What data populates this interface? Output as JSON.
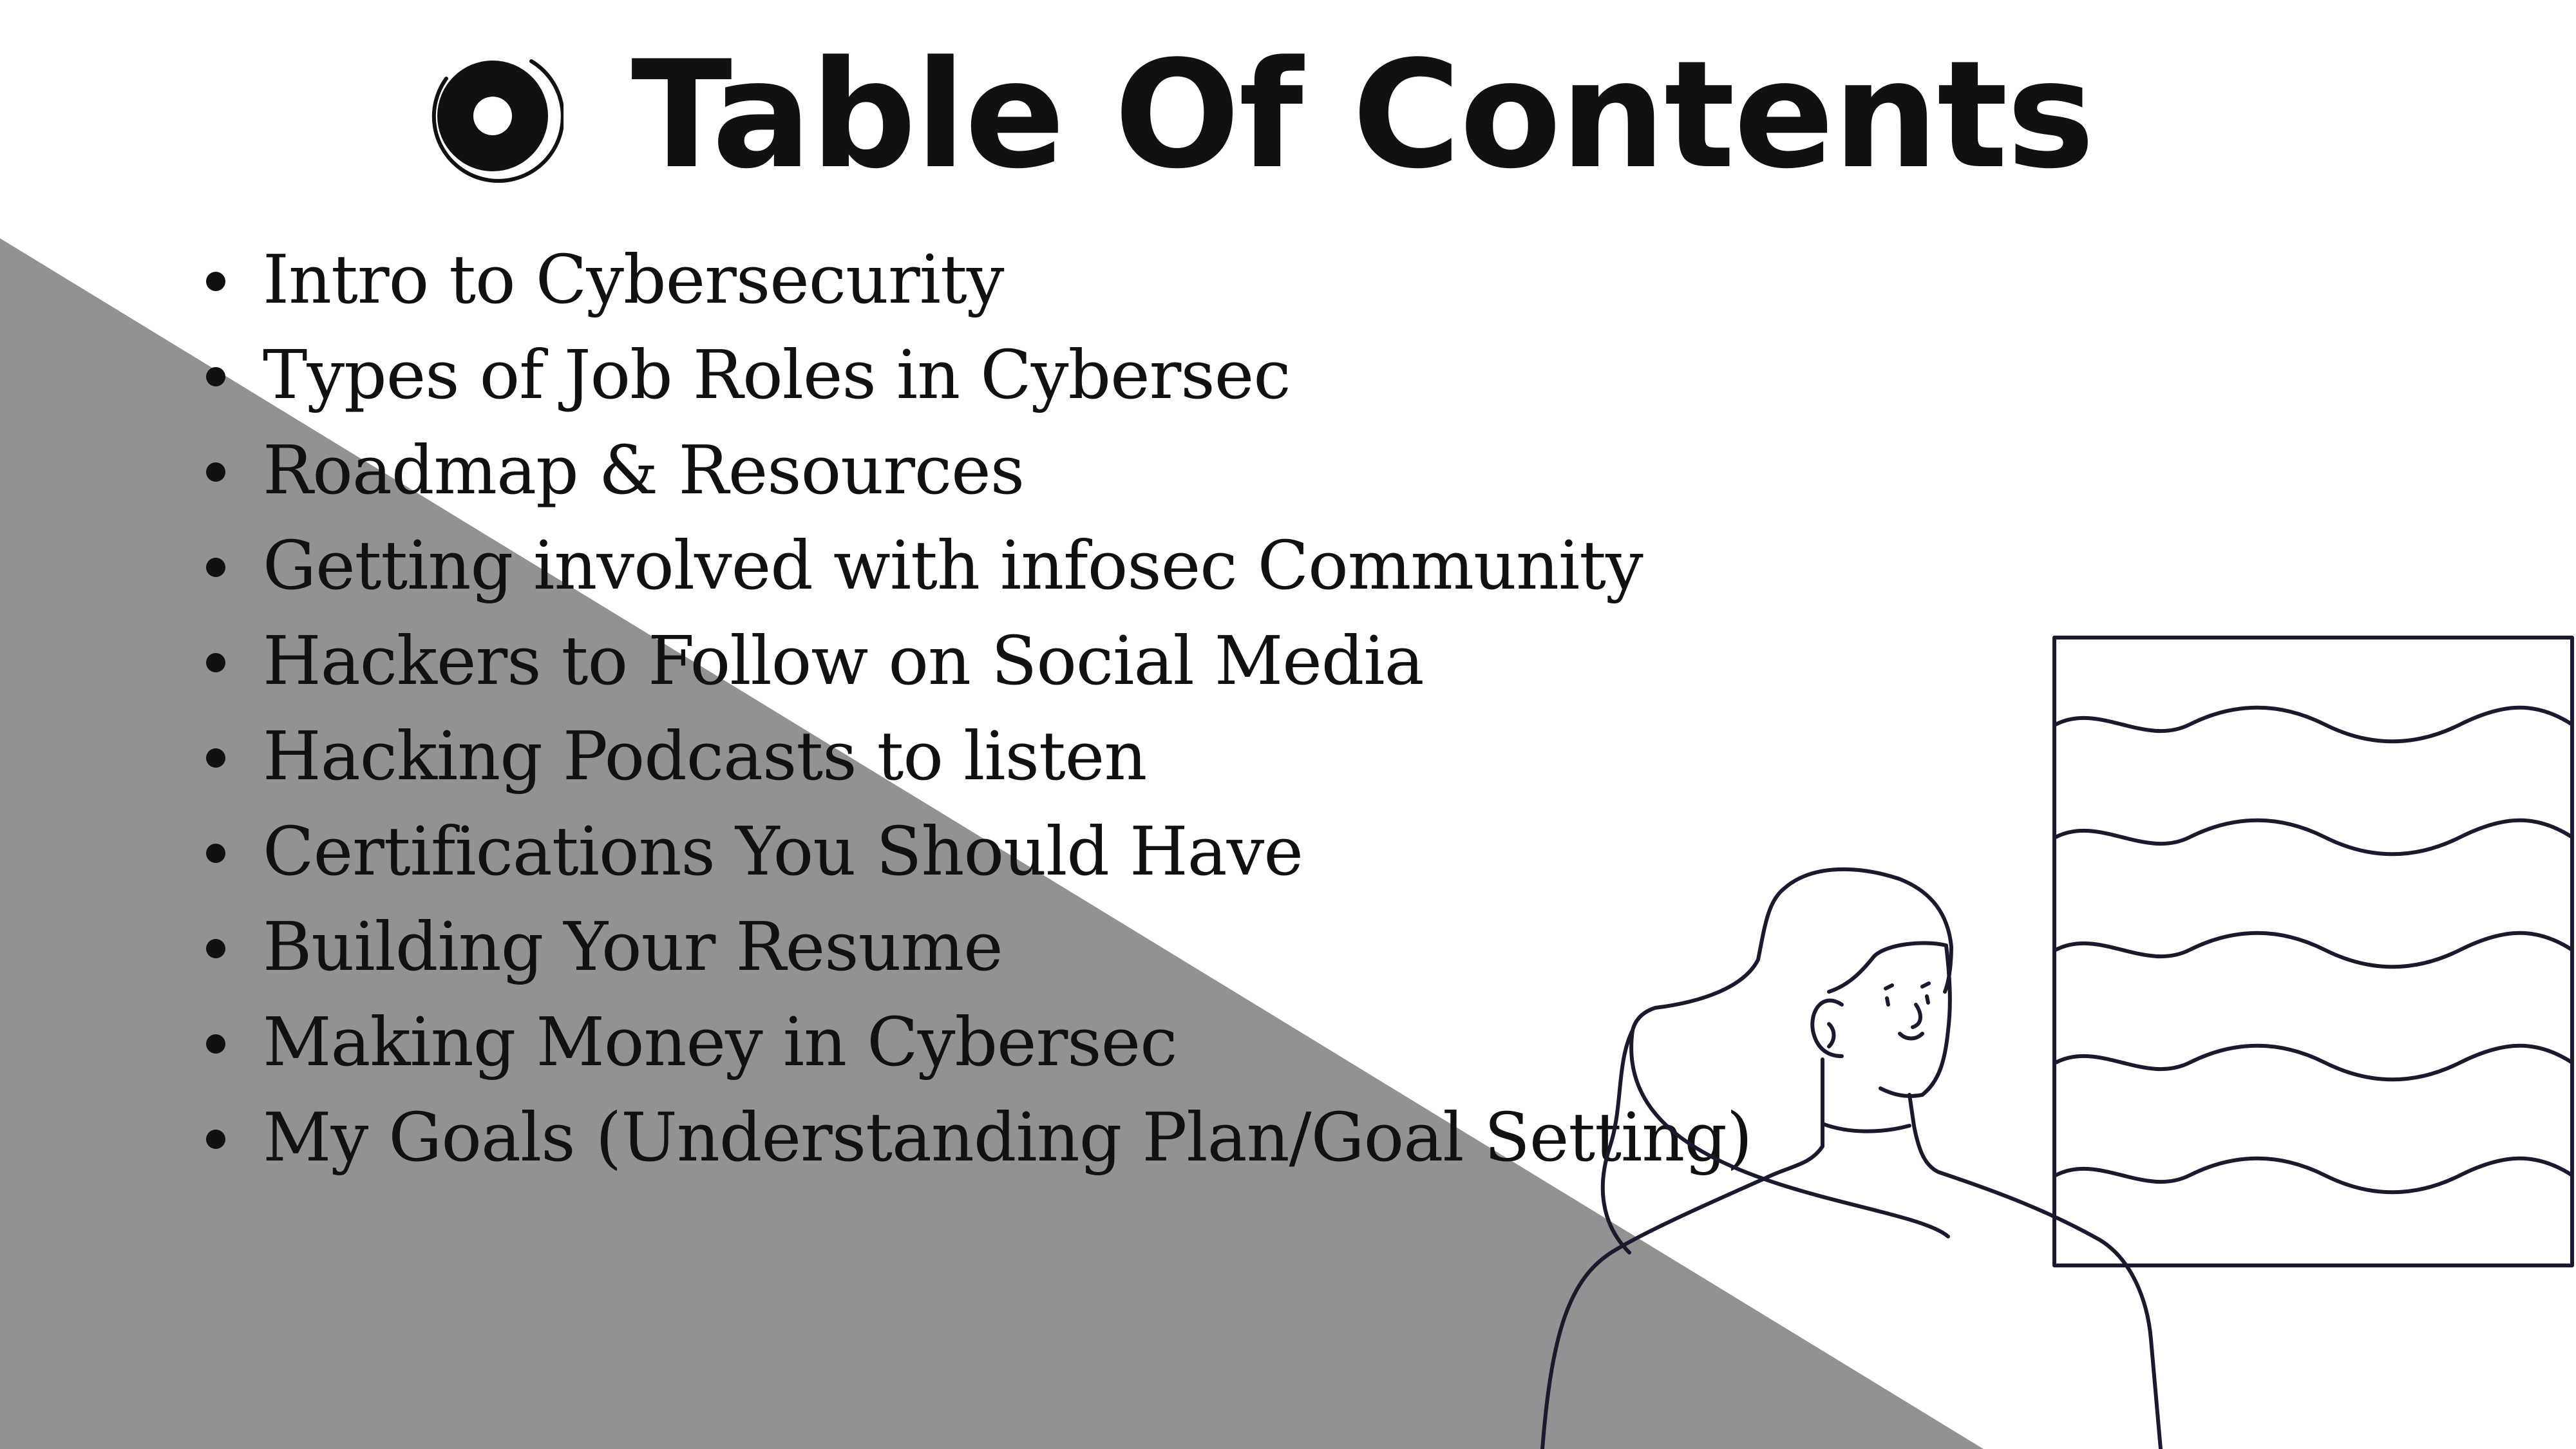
{
  "slide": {
    "title": "Table Of Contents",
    "title_icon": "record-circle-icon",
    "items": [
      "Intro to Cybersecurity",
      "Types of Job Roles in Cybersec",
      "Roadmap & Resources",
      "Getting involved with infosec Community",
      "Hackers to Follow on Social Media",
      "Hacking Podcasts to listen",
      "Certifications You Should Have",
      "Building Your Resume",
      "Making Money in Cybersec",
      "My Goals (Understanding Plan/Goal Setting)"
    ]
  },
  "colors": {
    "background": "#ffffff",
    "diagonal_shape": "#929292",
    "text": "#111111",
    "line_art": "#1a1a2e"
  },
  "illustration": {
    "subject": "woman-presenting-board",
    "icon": "woman-with-board-illustration"
  }
}
